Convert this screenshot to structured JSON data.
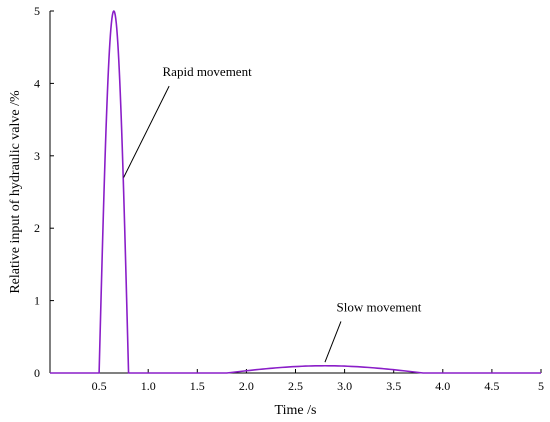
{
  "chart_data": {
    "type": "line",
    "xlabel": "Time /s",
    "ylabel": "Relative input of hydraulic valve /%",
    "xlim": [
      0,
      5
    ],
    "ylim": [
      0,
      5
    ],
    "x_ticks": [
      {
        "value": 0.5,
        "label": "0.5"
      },
      {
        "value": 1.0,
        "label": "1.0"
      },
      {
        "value": 1.5,
        "label": "1.5"
      },
      {
        "value": 2.0,
        "label": "2.0"
      },
      {
        "value": 2.5,
        "label": "2.5"
      },
      {
        "value": 3.0,
        "label": "3.0"
      },
      {
        "value": 3.5,
        "label": "3.5"
      },
      {
        "value": 4.0,
        "label": "4.0"
      },
      {
        "value": 4.5,
        "label": "4.5"
      },
      {
        "value": 5.0,
        "label": "5"
      }
    ],
    "y_ticks": [
      {
        "value": 0,
        "label": "0"
      },
      {
        "value": 1,
        "label": "1"
      },
      {
        "value": 2,
        "label": "2"
      },
      {
        "value": 3,
        "label": "3"
      },
      {
        "value": 4,
        "label": "4"
      },
      {
        "value": 5,
        "label": "5"
      }
    ],
    "grid": false,
    "series": [
      {
        "color": "#8a1ec8",
        "segments": [
          {
            "shape": "zero",
            "x_start": 0.0,
            "x_end": 0.5
          },
          {
            "shape": "pulse",
            "x_start": 0.5,
            "x_end": 0.8,
            "x_peak": 0.65,
            "peak": 5.0
          },
          {
            "shape": "zero",
            "x_start": 0.8,
            "x_end": 1.8
          },
          {
            "shape": "pulse",
            "x_start": 1.8,
            "x_end": 3.8,
            "x_peak": 2.8,
            "peak": 0.1
          },
          {
            "shape": "zero",
            "x_start": 3.8,
            "x_end": 5.0
          }
        ]
      }
    ],
    "annotations": [
      {
        "text": "Rapid movement",
        "text_x": 1.6,
        "text_y": 4.1,
        "point_x": 0.75,
        "point_y": 2.7
      },
      {
        "text": "Slow movement",
        "text_x": 3.35,
        "text_y": 0.85,
        "point_x": 2.8,
        "point_y": 0.15
      }
    ]
  }
}
